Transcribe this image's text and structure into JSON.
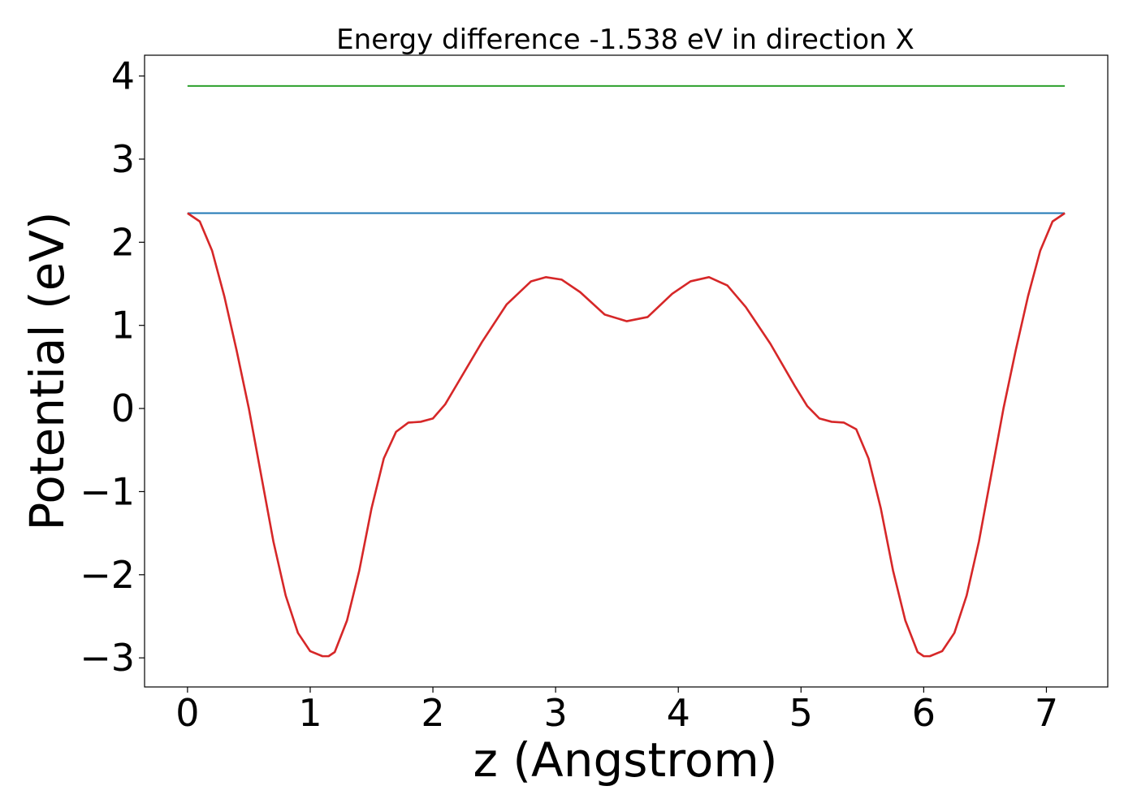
{
  "chart_data": {
    "type": "line",
    "title": "Energy difference -1.538 eV in direction X",
    "xlabel": "z (Angstrom)",
    "ylabel": "Potential (eV)",
    "xlim": [
      -0.35,
      7.5
    ],
    "ylim": [
      -3.35,
      4.25
    ],
    "x_ticks": [
      0,
      1,
      2,
      3,
      4,
      5,
      6,
      7
    ],
    "y_ticks": [
      -3,
      -2,
      -1,
      0,
      1,
      2,
      3,
      4
    ],
    "x_tick_labels": [
      "0",
      "1",
      "2",
      "3",
      "4",
      "5",
      "6",
      "7"
    ],
    "y_tick_labels": [
      "−3",
      "−2",
      "−1",
      "0",
      "1",
      "2",
      "3",
      "4"
    ],
    "grid": false,
    "legend": "none",
    "series": [
      {
        "color": "#2ca02c",
        "x": [
          0,
          7.15
        ],
        "y": [
          3.88,
          3.88
        ]
      },
      {
        "color": "#1f77b4",
        "x": [
          0,
          7.15
        ],
        "y": [
          2.35,
          2.35
        ]
      },
      {
        "color": "#d62728",
        "x": [
          0,
          0.1,
          0.2,
          0.3,
          0.4,
          0.5,
          0.6,
          0.7,
          0.8,
          0.9,
          1.0,
          1.1,
          1.15,
          1.2,
          1.3,
          1.4,
          1.5,
          1.6,
          1.7,
          1.8,
          1.9,
          2.0,
          2.1,
          2.2,
          2.4,
          2.6,
          2.8,
          2.92,
          3.05,
          3.2,
          3.4,
          3.58,
          3.75,
          3.95,
          4.1,
          4.25,
          4.4,
          4.55,
          4.75,
          4.95,
          5.05,
          5.15,
          5.25,
          5.35,
          5.45,
          5.55,
          5.65,
          5.75,
          5.85,
          5.95,
          6.0,
          6.05,
          6.15,
          6.25,
          6.35,
          6.45,
          6.55,
          6.65,
          6.75,
          6.85,
          6.95,
          7.05,
          7.15
        ],
        "y": [
          2.35,
          2.25,
          1.9,
          1.35,
          0.7,
          0.0,
          -0.8,
          -1.6,
          -2.25,
          -2.7,
          -2.92,
          -2.98,
          -2.98,
          -2.93,
          -2.55,
          -1.95,
          -1.2,
          -0.6,
          -0.28,
          -0.17,
          -0.16,
          -0.12,
          0.05,
          0.3,
          0.8,
          1.25,
          1.53,
          1.58,
          1.55,
          1.4,
          1.13,
          1.05,
          1.1,
          1.38,
          1.53,
          1.58,
          1.48,
          1.22,
          0.78,
          0.27,
          0.03,
          -0.12,
          -0.16,
          -0.17,
          -0.25,
          -0.6,
          -1.2,
          -1.95,
          -2.55,
          -2.93,
          -2.98,
          -2.98,
          -2.92,
          -2.7,
          -2.25,
          -1.6,
          -0.8,
          0.0,
          0.7,
          1.35,
          1.9,
          2.25,
          2.35
        ]
      }
    ]
  }
}
